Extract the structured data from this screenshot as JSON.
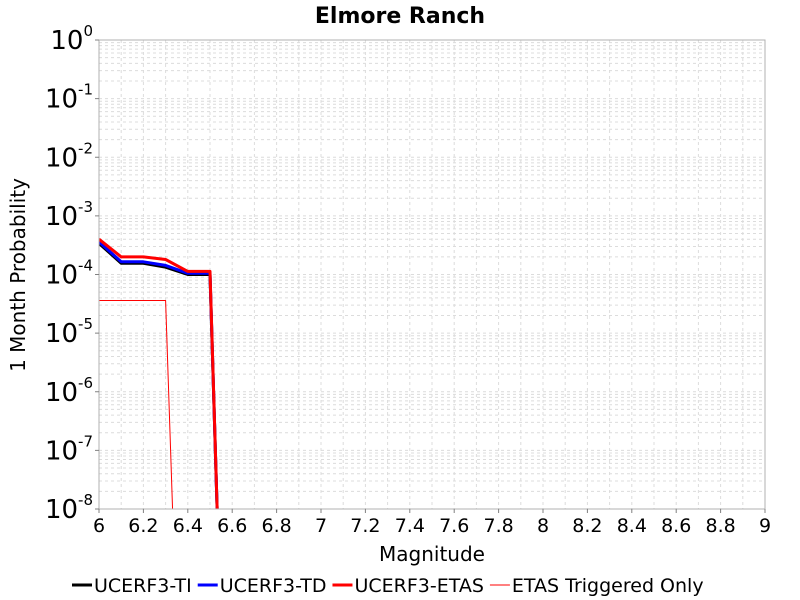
{
  "chart_data": {
    "type": "line",
    "title": "Elmore Ranch",
    "xlabel": "Magnitude",
    "ylabel": "1 Month Probability",
    "xlim": [
      6,
      9
    ],
    "ylim": [
      1e-08,
      1
    ],
    "yscale": "log",
    "grid": true,
    "legend_position": "bottom",
    "x_ticks": [
      "6",
      "6.2",
      "6.4",
      "6.6",
      "6.8",
      "7",
      "7.2",
      "7.4",
      "7.6",
      "7.8",
      "8",
      "8.2",
      "8.4",
      "8.6",
      "8.8",
      "9"
    ],
    "y_ticks": [
      {
        "base": "10",
        "exp": "0"
      },
      {
        "base": "10",
        "exp": "-1"
      },
      {
        "base": "10",
        "exp": "-2"
      },
      {
        "base": "10",
        "exp": "-3"
      },
      {
        "base": "10",
        "exp": "-4"
      },
      {
        "base": "10",
        "exp": "-5"
      },
      {
        "base": "10",
        "exp": "-6"
      },
      {
        "base": "10",
        "exp": "-7"
      },
      {
        "base": "10",
        "exp": "-8"
      }
    ],
    "series": [
      {
        "name": "UCERF3-TI",
        "color": "#000000",
        "width": 3,
        "x": [
          6.0,
          6.1,
          6.2,
          6.3,
          6.4,
          6.5,
          6.54
        ],
        "y": [
          0.00034,
          0.000155,
          0.000155,
          0.000133,
          0.0001,
          0.0001,
          1e-09
        ]
      },
      {
        "name": "UCERF3-TD",
        "color": "#0000ff",
        "width": 3,
        "x": [
          6.0,
          6.1,
          6.2,
          6.3,
          6.4,
          6.5,
          6.54
        ],
        "y": [
          0.00036,
          0.000165,
          0.000165,
          0.000143,
          0.000105,
          0.000105,
          1e-09
        ]
      },
      {
        "name": "UCERF3-ETAS",
        "color": "#ff0000",
        "width": 3,
        "x": [
          6.0,
          6.1,
          6.2,
          6.3,
          6.4,
          6.5,
          6.54
        ],
        "y": [
          0.0004,
          0.0002,
          0.0002,
          0.00018,
          0.000113,
          0.000113,
          1e-09
        ]
      },
      {
        "name": "ETAS Triggered Only",
        "color": "#ff0000",
        "width": 1,
        "x": [
          6.0,
          6.1,
          6.2,
          6.3,
          6.34
        ],
        "y": [
          3.6e-05,
          3.6e-05,
          3.6e-05,
          3.6e-05,
          1e-09
        ]
      }
    ]
  }
}
